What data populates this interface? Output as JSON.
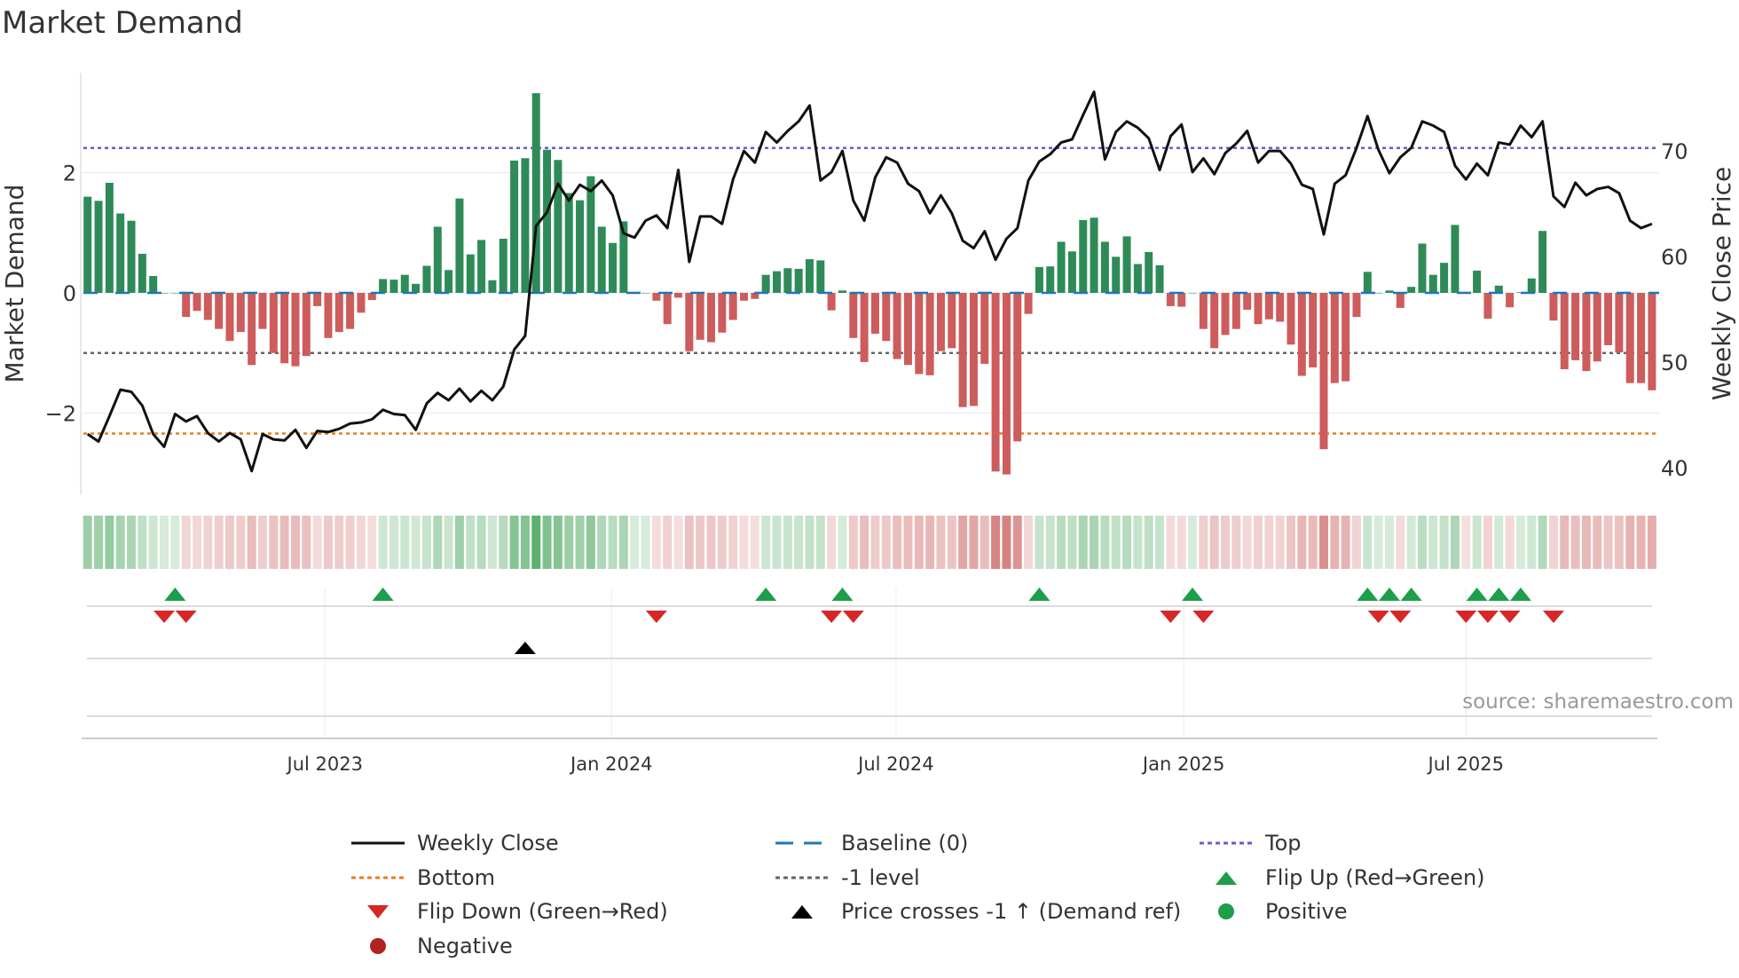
{
  "title": "Market Demand",
  "source": "source: sharemaestro.com",
  "legend": {
    "weekly_close": "Weekly Close",
    "baseline": "Baseline (0)",
    "top": "Top",
    "bottom": "Bottom",
    "minus1": "-1 level",
    "flip_up": "Flip Up (Red→Green)",
    "flip_down": "Flip Down (Green→Red)",
    "price_cross": "Price crosses -1 ↑ (Demand ref)",
    "positive": "Positive",
    "negative": "Negative"
  },
  "colors": {
    "positive": "#2e8b57",
    "negative": "#cd5c5c",
    "price": "#111111",
    "baseline": "#1f77b4",
    "top": "#6a5acd",
    "bottom": "#e67e22",
    "minus1": "#666666",
    "flip_up": "#1e9e4a",
    "flip_down": "#d62728",
    "cross": "#000000"
  },
  "chart_data": {
    "type": "bar",
    "title": "Market Demand",
    "ylabel": "Market Demand",
    "y2label": "Weekly Close Price",
    "ylim": [
      -3.35,
      3.66
    ],
    "y2lim": [
      37.5,
      77.4
    ],
    "yticks": [
      "2",
      "0",
      "−2"
    ],
    "yticks_values": [
      2,
      0,
      -2
    ],
    "y2ticks": [
      "70",
      "60",
      "50",
      "40"
    ],
    "y2ticks_values": [
      70,
      60,
      50,
      40
    ],
    "xticks": [
      "Jul 2023",
      "Jan 2024",
      "Jul 2024",
      "Jan 2025",
      "Jul 2025"
    ],
    "xticks_week_index": [
      21.7,
      47.9,
      73.9,
      100.2,
      126
    ],
    "start_week": "2023-01-30",
    "frequency": "weekly",
    "levels": {
      "top": 2.41,
      "bottom": -2.34,
      "minus1": -1,
      "baseline": 0
    },
    "demand": [
      1.6,
      1.53,
      1.83,
      1.32,
      1.2,
      0.65,
      0.28,
      0,
      0,
      -0.4,
      -0.3,
      -0.45,
      -0.6,
      -0.8,
      -0.65,
      -1.2,
      -0.6,
      -1.0,
      -1.17,
      -1.22,
      -1.05,
      -0.22,
      -0.75,
      -0.65,
      -0.6,
      -0.33,
      -0.12,
      0.23,
      0.22,
      0.3,
      0.15,
      0.45,
      1.1,
      0.38,
      1.57,
      0.64,
      0.88,
      0.21,
      0.9,
      2.2,
      2.24,
      3.32,
      2.38,
      2.21,
      1.66,
      1.54,
      1.94,
      1.1,
      0.83,
      1.19,
      0,
      0,
      -0.13,
      -0.52,
      -0.08,
      -0.97,
      -0.78,
      -0.82,
      -0.66,
      -0.45,
      -0.13,
      -0.1,
      0.3,
      0.36,
      0.41,
      0.4,
      0.56,
      0.54,
      -0.29,
      0.04,
      -0.75,
      -1.15,
      -0.68,
      -0.8,
      -1.1,
      -1.2,
      -1.35,
      -1.37,
      -0.97,
      -0.92,
      -1.9,
      -1.88,
      -1.18,
      -2.97,
      -3.02,
      -2.47,
      -0.35,
      0.43,
      0.44,
      0.85,
      0.69,
      1.21,
      1.25,
      0.85,
      0.6,
      0.94,
      0.48,
      0.68,
      0.46,
      -0.22,
      -0.23,
      0,
      -0.6,
      -0.92,
      -0.7,
      -0.6,
      -0.28,
      -0.52,
      -0.44,
      -0.48,
      -0.86,
      -1.38,
      -1.24,
      -2.6,
      -1.5,
      -1.47,
      -0.4,
      0.35,
      0,
      0.04,
      -0.25,
      0.1,
      0.82,
      0.3,
      0.5,
      1.13,
      -0.01,
      0.37,
      -0.43,
      0.12,
      -0.24,
      0.01,
      0.24,
      1.03,
      -0.46,
      -1.27,
      -1.12,
      -1.3,
      -1.14,
      -0.87,
      -0.99,
      -1.5,
      -1.5,
      -1.62
    ],
    "price": [
      43.2,
      42.5,
      44.9,
      47.4,
      47.2,
      45.9,
      43.2,
      42,
      45.1,
      44.4,
      44.9,
      43.3,
      42.5,
      43.3,
      42.7,
      39.7,
      43.2,
      42.7,
      42.6,
      43.6,
      41.9,
      43.5,
      43.4,
      43.7,
      44.2,
      44.3,
      44.6,
      45.5,
      45.1,
      45,
      43.6,
      46.1,
      47.1,
      46.4,
      47.5,
      46.3,
      47.3,
      46.4,
      47.7,
      51.2,
      52.5,
      62.9,
      64.2,
      66.9,
      65.3,
      66.8,
      66.2,
      67.2,
      65.8,
      62.2,
      61.8,
      63.4,
      63.9,
      62.7,
      68.2,
      59.5,
      63.8,
      63.8,
      63.1,
      67.3,
      70,
      68.9,
      71.8,
      70.8,
      71.9,
      72.8,
      74.3,
      67.2,
      68,
      70,
      65.3,
      63.4,
      67.5,
      69.4,
      68.9,
      66.9,
      66.2,
      64.1,
      65.8,
      64.1,
      61.5,
      60.8,
      62.4,
      59.7,
      61.7,
      62.7,
      67.2,
      69,
      69.7,
      70.8,
      71.1,
      73.4,
      75.6,
      69.2,
      71.8,
      72.8,
      72.2,
      71.2,
      68.2,
      71.4,
      72.5,
      68,
      69.3,
      67.8,
      69.8,
      70.7,
      71.9,
      68.9,
      70,
      70,
      68.8,
      66.8,
      66.4,
      62.1,
      66.9,
      67.7,
      70.3,
      73.3,
      70.1,
      67.9,
      69.4,
      70.3,
      72.8,
      72.4,
      71.8,
      68.6,
      67.3,
      68.8,
      67.7,
      70.8,
      70.6,
      72.4,
      71.3,
      72.8,
      65.7,
      64.7,
      67,
      65.8,
      66.4,
      66.6,
      66,
      63.4,
      62.7,
      63.1
    ],
    "flip_up_week_index": [
      8,
      27,
      62,
      69,
      87,
      101,
      117,
      119,
      121,
      127,
      129,
      131
    ],
    "flip_down_week_index": [
      7,
      9,
      52,
      68,
      70,
      99,
      102,
      118,
      120,
      126,
      128,
      130,
      134
    ],
    "price_cross_week_index": [
      40
    ]
  }
}
